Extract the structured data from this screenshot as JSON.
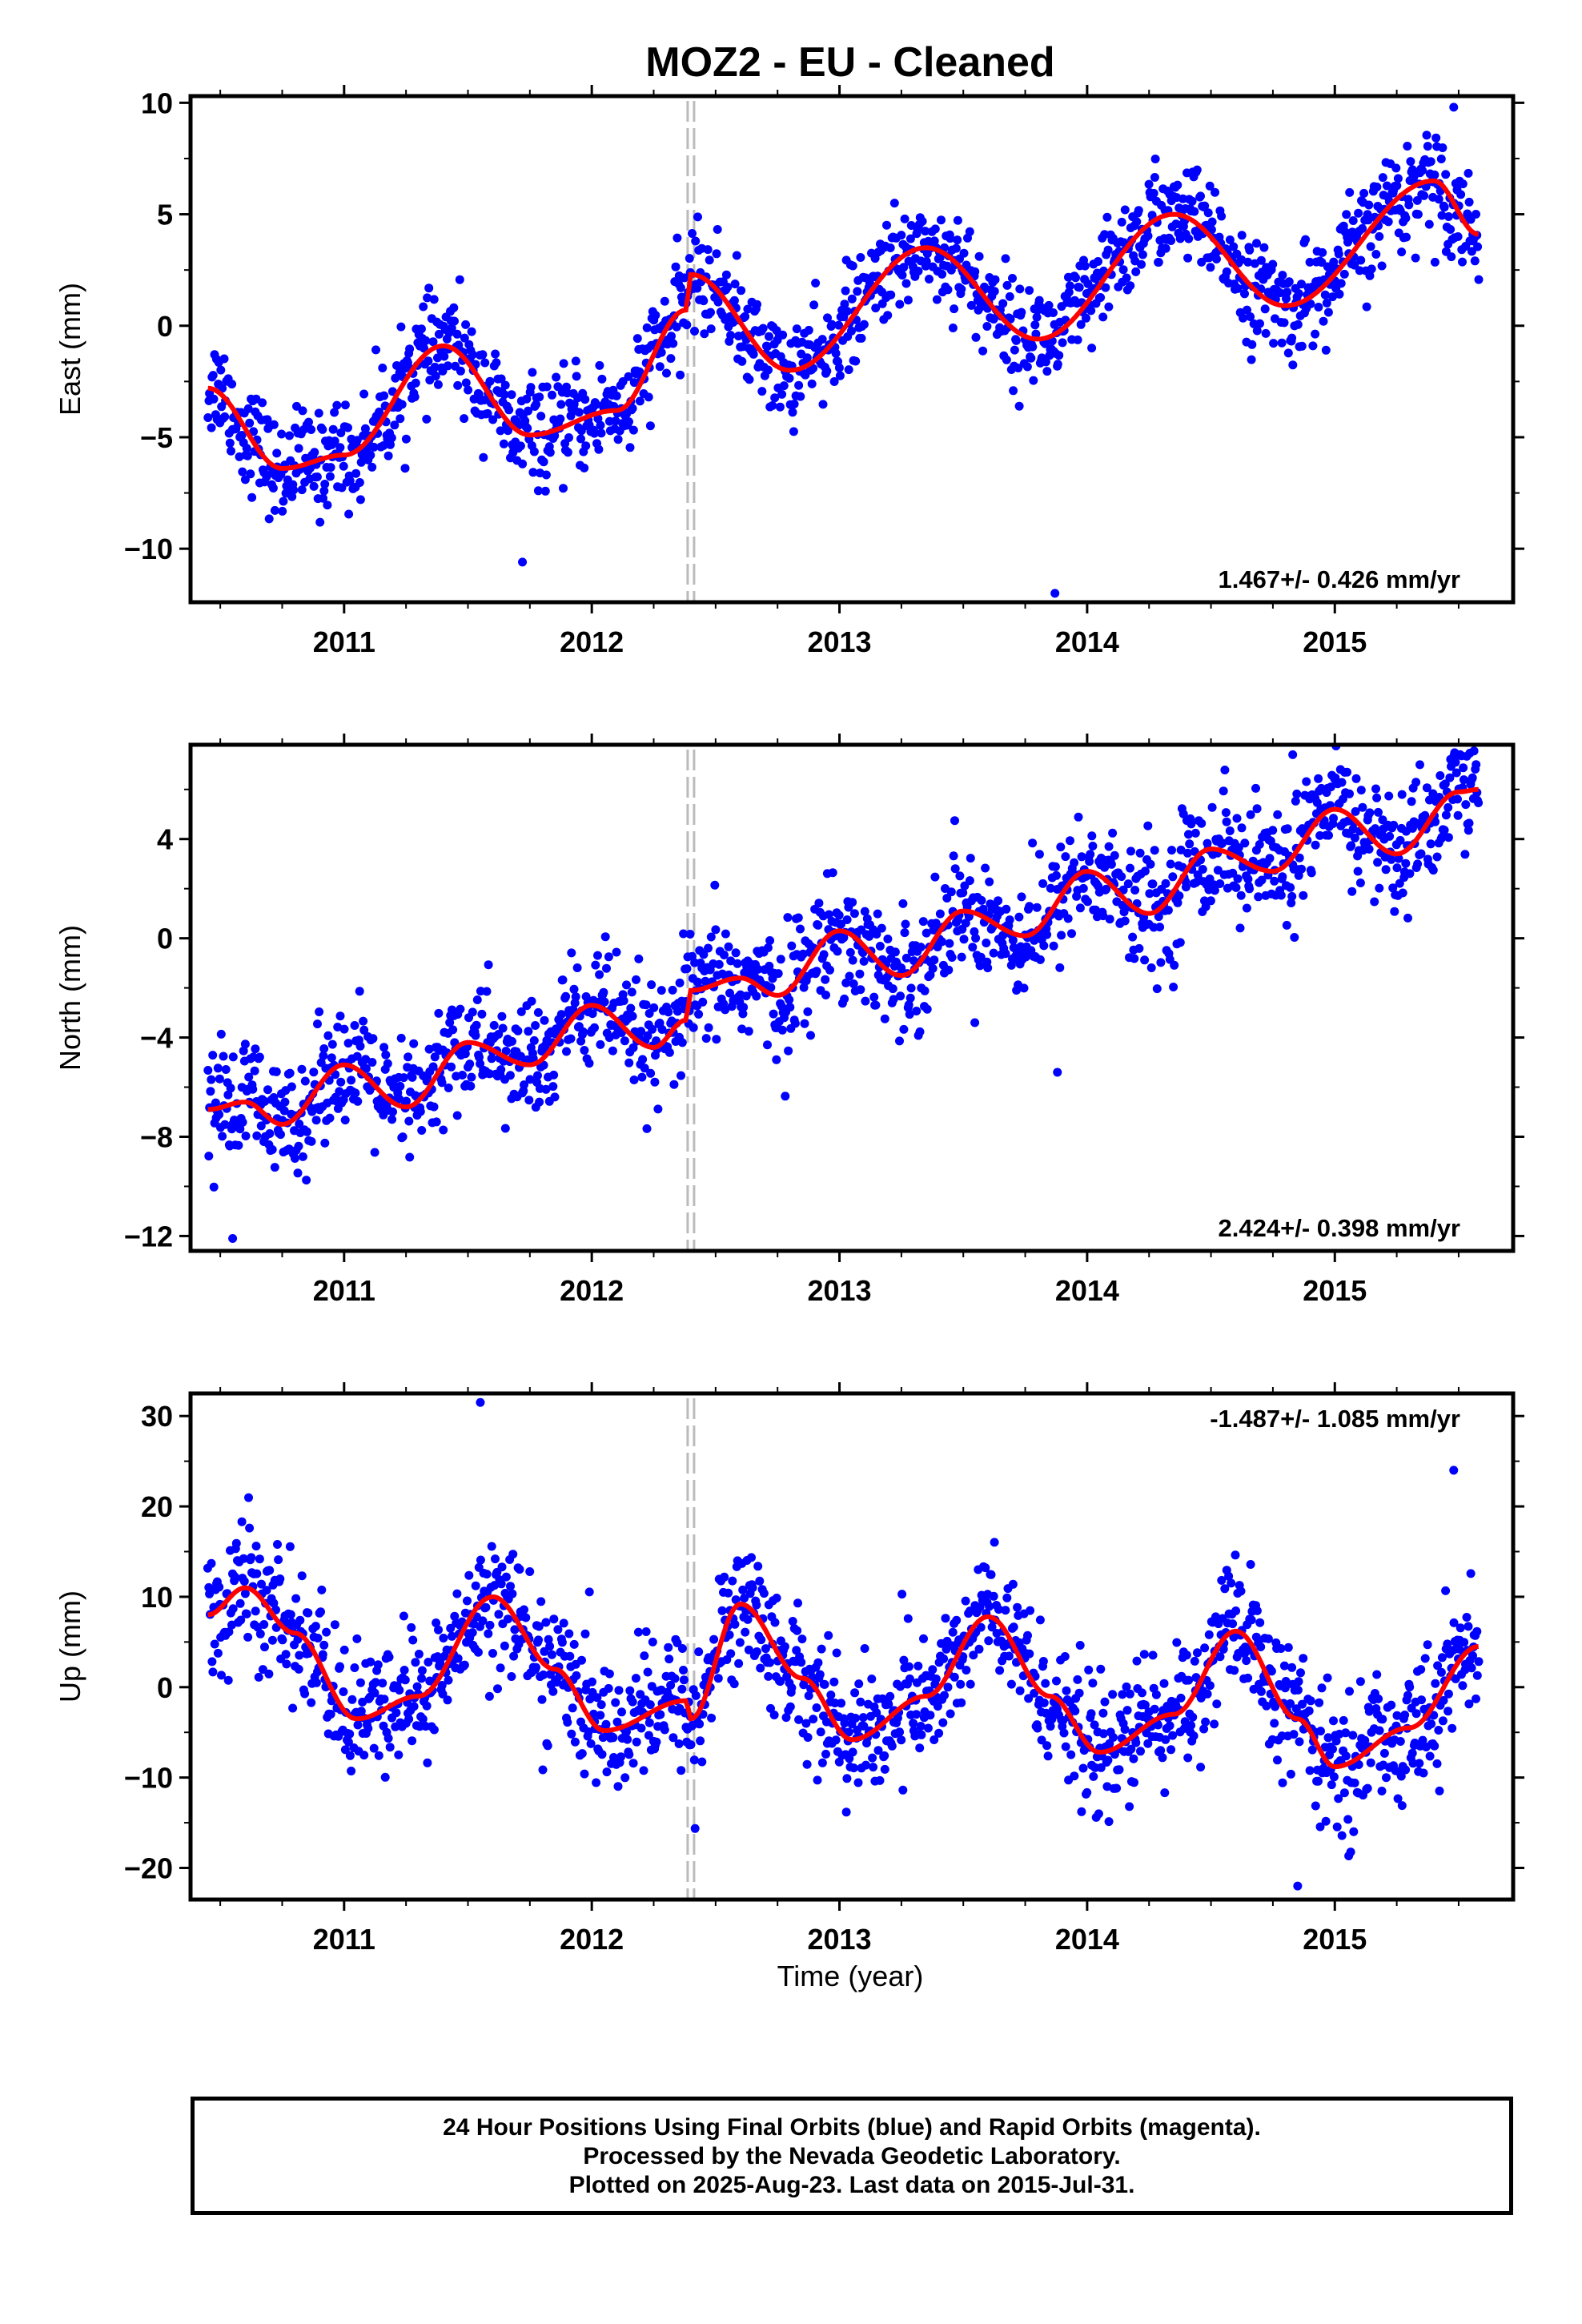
{
  "title": "MOZ2  - EU - Cleaned",
  "xlabel": "Time (year)",
  "footer": {
    "line1": "24 Hour Positions Using Final Orbits (blue) and Rapid Orbits (magenta).",
    "line2": "Processed by the Nevada Geodetic Laboratory.",
    "line3": "Plotted on 2025-Aug-23. Last data on 2015-Jul-31."
  },
  "colors": {
    "points": "#0000ff",
    "model": "#ff0000",
    "offset_line": "#bbbbbb",
    "frame": "#000000"
  },
  "chart_data": [
    {
      "type": "scatter",
      "name_key": "east",
      "ylabel": "East (mm)",
      "rate_text": "1.467+/- 0.426 mm/yr",
      "rate_position": "bottom-right",
      "xlim": [
        2010.38,
        2015.72
      ],
      "ylim": [
        -12.4,
        10.3
      ],
      "yticks": [
        10,
        5,
        0,
        -5,
        -10
      ],
      "xticks": [
        2011,
        2012,
        2013,
        2014,
        2015
      ],
      "offset_epoch": 2012.4,
      "first_epoch": 2010.45,
      "last_epoch": 2015.58,
      "model": {
        "offset": -3.5,
        "trend": 1.467,
        "annual_amp": 2.0,
        "annual_phase": 0.18,
        "semi_amp": 0.6,
        "semi_phase": 0.9,
        "step": 1.2,
        "scatter": 1.4
      },
      "model_curve": {
        "x": [
          2010.45,
          2010.75,
          2011.0,
          2011.4,
          2011.75,
          2012.1,
          2012.38,
          2012.4,
          2012.8,
          2013.35,
          2013.8,
          2014.35,
          2014.8,
          2015.4,
          2015.58
        ],
        "y": [
          -2.8,
          -6.4,
          -5.8,
          -0.9,
          -4.9,
          -3.8,
          0.7,
          2.3,
          -2.0,
          3.5,
          -0.6,
          5.0,
          0.9,
          6.5,
          4.1
        ]
      },
      "outliers": [
        {
          "x": 2015.48,
          "y": 9.8
        },
        {
          "x": 2013.87,
          "y": -12.0
        },
        {
          "x": 2011.72,
          "y": -10.6
        }
      ]
    },
    {
      "type": "scatter",
      "name_key": "north",
      "ylabel": "North (mm)",
      "rate_text": "2.424+/- 0.398 mm/yr",
      "rate_position": "bottom-right",
      "xlim": [
        2010.38,
        2015.72
      ],
      "ylim": [
        -12.6,
        7.8
      ],
      "yticks": [
        4,
        0,
        -4,
        -8,
        -12
      ],
      "xticks": [
        2011,
        2012,
        2013,
        2014,
        2015
      ],
      "offset_epoch": 2012.4,
      "first_epoch": 2010.45,
      "last_epoch": 2015.58,
      "model_curve": {
        "x": [
          2010.45,
          2010.6,
          2010.75,
          2011.0,
          2011.25,
          2011.5,
          2011.75,
          2012.0,
          2012.25,
          2012.38,
          2012.4,
          2012.6,
          2012.75,
          2013.0,
          2013.25,
          2013.5,
          2013.75,
          2014.0,
          2014.25,
          2014.5,
          2014.75,
          2015.0,
          2015.25,
          2015.5,
          2015.58
        ],
        "y": [
          -6.9,
          -6.6,
          -7.5,
          -5.1,
          -6.8,
          -4.2,
          -5.1,
          -2.7,
          -4.4,
          -3.3,
          -2.1,
          -1.6,
          -2.3,
          0.3,
          -1.5,
          1.1,
          0.1,
          2.7,
          1.0,
          3.6,
          2.7,
          5.2,
          3.4,
          5.9,
          6.0
        ]
      },
      "scatter": 1.5,
      "outliers": [
        {
          "x": 2010.55,
          "y": -12.1
        },
        {
          "x": 2014.83,
          "y": 7.4
        },
        {
          "x": 2013.88,
          "y": -5.4
        }
      ]
    },
    {
      "type": "scatter",
      "name_key": "up",
      "ylabel": "Up (mm)",
      "rate_text": "-1.487+/- 1.085 mm/yr",
      "rate_position": "top-right",
      "xlim": [
        2010.38,
        2015.72
      ],
      "ylim": [
        -23.5,
        32.5
      ],
      "yticks": [
        30,
        20,
        10,
        0,
        -10,
        -20
      ],
      "xticks": [
        2011,
        2012,
        2013,
        2014,
        2015
      ],
      "offset_epoch": 2012.4,
      "first_epoch": 2010.45,
      "last_epoch": 2015.58,
      "model_curve": {
        "x": [
          2010.45,
          2010.6,
          2010.8,
          2011.05,
          2011.3,
          2011.6,
          2011.85,
          2012.05,
          2012.38,
          2012.4,
          2012.6,
          2012.85,
          2013.05,
          2013.35,
          2013.6,
          2013.85,
          2014.05,
          2014.35,
          2014.6,
          2014.85,
          2015.0,
          2015.3,
          2015.58
        ],
        "y": [
          8.0,
          11.0,
          6.0,
          -3.5,
          -1.0,
          10.0,
          2.0,
          -4.8,
          -1.5,
          -3.5,
          9.2,
          1.0,
          -5.8,
          -1.0,
          7.8,
          -1.0,
          -7.2,
          -3.0,
          6.2,
          -3.5,
          -8.8,
          -4.5,
          4.5
        ]
      },
      "scatter": 4.5,
      "outliers": [
        {
          "x": 2011.55,
          "y": 31.5
        },
        {
          "x": 2015.48,
          "y": 24.0
        },
        {
          "x": 2014.85,
          "y": -22.0
        }
      ]
    }
  ]
}
